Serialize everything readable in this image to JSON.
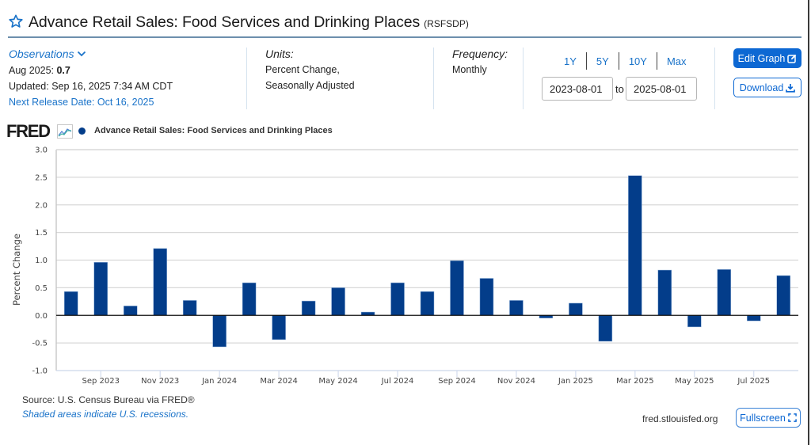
{
  "header": {
    "title": "Advance Retail Sales: Food Services and Drinking Places",
    "series_id": "(RSFSDP)",
    "favorite_icon": "star-outline-icon"
  },
  "observations": {
    "link_label": "Observations",
    "latest_period": "Aug 2025: ",
    "latest_value": "0.7",
    "updated": "Updated: Sep 16, 2025 7:34 AM CDT",
    "next_release": "Next Release Date: Oct 16, 2025"
  },
  "units": {
    "label": "Units:",
    "line1": "Percent Change,",
    "line2": "Seasonally Adjusted"
  },
  "frequency": {
    "label": "Frequency:",
    "value": "Monthly"
  },
  "range_buttons": [
    "1Y",
    "5Y",
    "10Y",
    "Max"
  ],
  "date_range": {
    "start": "2023-08-01",
    "to_label": "to",
    "end": "2025-08-01"
  },
  "buttons": {
    "edit_graph": "Edit Graph",
    "download": "Download",
    "fullscreen": "Fullscreen"
  },
  "branding": {
    "logo_text": "FRED",
    "site": "fred.stlouisfed.org"
  },
  "footer": {
    "source": "Source: U.S. Census Bureau via FRED®",
    "recession_note": "Shaded areas indicate U.S. recessions."
  },
  "colors": {
    "accent": "#0d68d3",
    "link": "#1a73c9",
    "series": "#033d8a",
    "header_rule": "#6d8fad"
  },
  "chart_data": {
    "type": "bar",
    "title": "",
    "legend": [
      "Advance Retail Sales: Food Services and Drinking Places"
    ],
    "legend_position": "top-left",
    "xlabel": "",
    "ylabel": "Percent Change",
    "ylim": [
      -1.0,
      3.0
    ],
    "yticks": [
      "3.0",
      "2.5",
      "2.0",
      "1.5",
      "1.0",
      "0.5",
      "0.0",
      "-0.5",
      "-1.0"
    ],
    "ytick_values": [
      3.0,
      2.5,
      2.0,
      1.5,
      1.0,
      0.5,
      0.0,
      -0.5,
      -1.0
    ],
    "grid": true,
    "categories": [
      "Aug 2023",
      "Sep 2023",
      "Oct 2023",
      "Nov 2023",
      "Dec 2023",
      "Jan 2024",
      "Feb 2024",
      "Mar 2024",
      "Apr 2024",
      "May 2024",
      "Jun 2024",
      "Jul 2024",
      "Aug 2024",
      "Sep 2024",
      "Oct 2024",
      "Nov 2024",
      "Dec 2024",
      "Jan 2025",
      "Feb 2025",
      "Mar 2025",
      "Apr 2025",
      "May 2025",
      "Jun 2025",
      "Jul 2025",
      "Aug 2025"
    ],
    "xtick_labels": [
      {
        "index": 1,
        "label": "Sep 2023"
      },
      {
        "index": 3,
        "label": "Nov 2023"
      },
      {
        "index": 5,
        "label": "Jan 2024"
      },
      {
        "index": 7,
        "label": "Mar 2024"
      },
      {
        "index": 9,
        "label": "May 2024"
      },
      {
        "index": 11,
        "label": "Jul 2024"
      },
      {
        "index": 13,
        "label": "Sep 2024"
      },
      {
        "index": 15,
        "label": "Nov 2024"
      },
      {
        "index": 17,
        "label": "Jan 2025"
      },
      {
        "index": 19,
        "label": "Mar 2025"
      },
      {
        "index": 21,
        "label": "May 2025"
      },
      {
        "index": 23,
        "label": "Jul 2025"
      }
    ],
    "series": [
      {
        "name": "Advance Retail Sales: Food Services and Drinking Places",
        "color": "#033d8a",
        "values": [
          0.43,
          0.96,
          0.17,
          1.21,
          0.27,
          -0.57,
          0.59,
          -0.44,
          0.26,
          0.5,
          0.06,
          0.59,
          0.43,
          0.99,
          0.67,
          0.27,
          -0.05,
          0.22,
          -0.47,
          2.53,
          0.82,
          -0.21,
          0.83,
          -0.1,
          0.72
        ]
      }
    ]
  }
}
